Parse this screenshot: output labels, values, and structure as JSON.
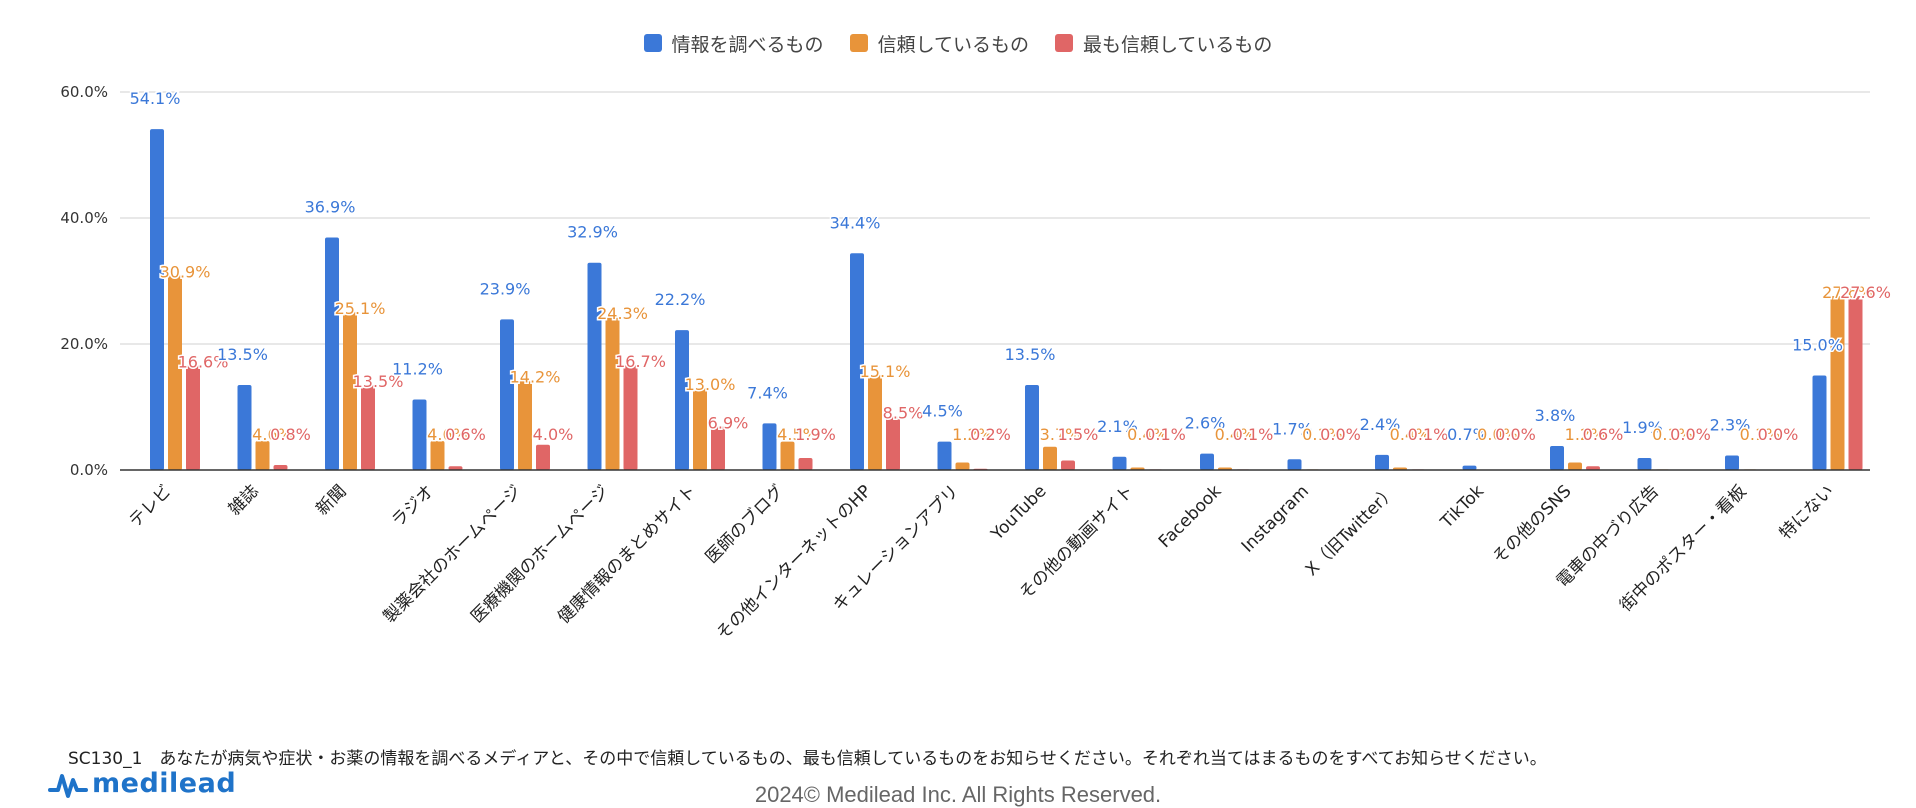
{
  "chart_data": {
    "type": "bar",
    "categories": [
      "テレビ",
      "雑誌",
      "新聞",
      "ラジオ",
      "製薬会社のホームページ",
      "医療機関のホームページ",
      "健康情報のまとめサイト",
      "医師のブログ",
      "その他インターネットのHP",
      "キュレーションアプリ",
      "YouTube",
      "その他の動画サイト",
      "Facebook",
      "Instagram",
      "X（旧Twitter）",
      "TikTok",
      "その他のSNS",
      "電車の中づり広告",
      "街中のポスター・看板",
      "特にない"
    ],
    "series": [
      {
        "name": "情報を調べるもの",
        "color": "#3b78d8",
        "values": [
          54.1,
          13.5,
          36.9,
          11.2,
          23.9,
          32.9,
          22.2,
          7.4,
          34.4,
          4.5,
          13.5,
          2.1,
          2.6,
          1.7,
          2.4,
          0.7,
          3.8,
          1.9,
          2.3,
          15.0
        ]
      },
      {
        "name": "信頼しているもの",
        "color": "#e8943a",
        "values": [
          30.9,
          4.6,
          25.1,
          4.6,
          14.2,
          24.3,
          13.0,
          4.5,
          15.1,
          1.2,
          3.7,
          0.4,
          0.4,
          0.1,
          0.4,
          0.0,
          1.2,
          0.1,
          0.1,
          27.6
        ]
      },
      {
        "name": "最も信頼しているもの",
        "color": "#e06666",
        "values": [
          16.6,
          0.8,
          13.5,
          0.6,
          4.0,
          16.7,
          6.9,
          1.9,
          8.5,
          0.2,
          1.5,
          0.1,
          0.1,
          0.0,
          0.1,
          0.0,
          0.6,
          0.0,
          0.0,
          27.6
        ]
      }
    ],
    "yticks": [
      "0.0%",
      "20.0%",
      "40.0%",
      "60.0%"
    ],
    "ylim": [
      0,
      60
    ],
    "grid": true,
    "legend": "top"
  },
  "footnote": "SC130_1　あなたが病気や症状・お薬の情報を調べるメディアと、その中で信頼しているもの、最も信頼しているものをお知らせください。それぞれ当てはまるものをすべてお知らせください。",
  "logo": "medilead",
  "copyright": "2024© Medilead Inc. All Rights Reserved."
}
